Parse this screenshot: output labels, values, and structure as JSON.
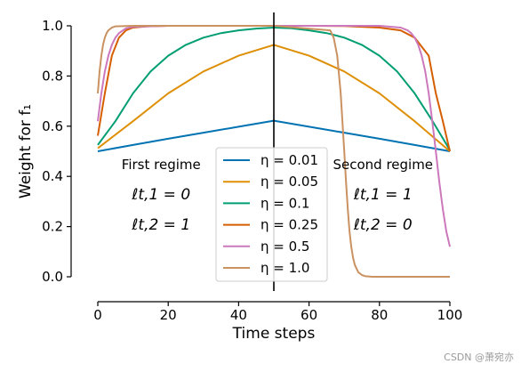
{
  "chart_data": {
    "type": "line",
    "xlabel": "Time steps",
    "ylabel": "Weight for f₁",
    "xlim": [
      0,
      100
    ],
    "ylim": [
      0.0,
      1.0
    ],
    "x_ticks": [
      0,
      20,
      40,
      60,
      80,
      100
    ],
    "y_ticks": [
      0.0,
      0.2,
      0.4,
      0.6,
      0.8,
      1.0
    ],
    "x_tick_labels": [
      "0",
      "20",
      "40",
      "60",
      "80",
      "100"
    ],
    "y_tick_labels": [
      "0.0",
      "0.2",
      "0.4",
      "0.6",
      "0.8",
      "1.0"
    ],
    "grid": false,
    "legend_placement": "lower-center",
    "vline_x": 50,
    "series": [
      {
        "name": "η = 0.01",
        "color": "#0173b2",
        "x": [
          0,
          10,
          20,
          30,
          40,
          50,
          60,
          70,
          80,
          90,
          100
        ],
        "y": [
          0.5,
          0.525,
          0.55,
          0.574,
          0.598,
          0.622,
          0.598,
          0.574,
          0.55,
          0.525,
          0.5
        ]
      },
      {
        "name": "η = 0.05",
        "color": "#de8f05",
        "x": [
          0,
          10,
          20,
          30,
          40,
          50,
          60,
          70,
          80,
          90,
          100
        ],
        "y": [
          0.512,
          0.62,
          0.731,
          0.818,
          0.881,
          0.924,
          0.881,
          0.818,
          0.731,
          0.62,
          0.5
        ]
      },
      {
        "name": "η = 0.1",
        "color": "#029e73",
        "x": [
          0,
          5,
          10,
          15,
          20,
          25,
          30,
          35,
          40,
          45,
          50,
          55,
          60,
          65,
          70,
          75,
          80,
          85,
          90,
          95,
          100
        ],
        "y": [
          0.525,
          0.62,
          0.731,
          0.818,
          0.881,
          0.924,
          0.953,
          0.971,
          0.982,
          0.989,
          0.993,
          0.99,
          0.982,
          0.971,
          0.953,
          0.924,
          0.881,
          0.818,
          0.731,
          0.622,
          0.505
        ]
      },
      {
        "name": "η = 0.25",
        "color": "#d55e00",
        "x": [
          0,
          2,
          4,
          6,
          8,
          10,
          14,
          20,
          30,
          40,
          50,
          60,
          70,
          80,
          86,
          90,
          94,
          96,
          98,
          100
        ],
        "y": [
          0.562,
          0.731,
          0.881,
          0.953,
          0.982,
          0.993,
          0.998,
          1.0,
          1.0,
          1.0,
          1.0,
          1.0,
          0.999,
          0.993,
          0.982,
          0.953,
          0.881,
          0.731,
          0.62,
          0.5
        ]
      },
      {
        "name": "η = 0.5",
        "color": "#cc78bc",
        "x": [
          0,
          1,
          2,
          3,
          4,
          5,
          6,
          8,
          10,
          20,
          50,
          80,
          86,
          88,
          89,
          90,
          91,
          92,
          93,
          94,
          95,
          96,
          97,
          98,
          99,
          100
        ],
        "y": [
          0.62,
          0.731,
          0.818,
          0.881,
          0.924,
          0.953,
          0.971,
          0.99,
          0.996,
          1.0,
          1.0,
          1.0,
          0.993,
          0.982,
          0.971,
          0.953,
          0.924,
          0.881,
          0.818,
          0.731,
          0.62,
          0.5,
          0.378,
          0.269,
          0.181,
          0.12
        ]
      },
      {
        "name": "η = 1.0",
        "color": "#ca9161",
        "x": [
          0,
          0.5,
          1,
          1.5,
          2,
          2.5,
          3,
          4,
          5,
          10,
          50,
          66,
          67,
          68,
          69,
          70,
          70.5,
          71,
          71.5,
          72,
          72.5,
          73,
          74,
          75,
          76,
          78,
          80,
          100
        ],
        "y": [
          0.731,
          0.818,
          0.881,
          0.924,
          0.953,
          0.971,
          0.982,
          0.993,
          0.998,
          1.0,
          1.0,
          0.982,
          0.953,
          0.881,
          0.731,
          0.5,
          0.378,
          0.269,
          0.182,
          0.119,
          0.076,
          0.047,
          0.018,
          0.007,
          0.002,
          0.0,
          0.0,
          0.0
        ]
      }
    ],
    "annotations": [
      {
        "name": "first-regime-title",
        "text": "First regime",
        "x": 18,
        "y": 0.45
      },
      {
        "name": "first-regime-l1",
        "text": "ℓt,1 = 0",
        "x": 18,
        "y": 0.33
      },
      {
        "name": "first-regime-l2",
        "text": "ℓt,2 = 1",
        "x": 18,
        "y": 0.21
      },
      {
        "name": "second-regime-title",
        "text": "Second regime",
        "x": 81,
        "y": 0.45
      },
      {
        "name": "second-regime-l1",
        "text": "ℓt,1 = 1",
        "x": 81,
        "y": 0.33
      },
      {
        "name": "second-regime-l2",
        "text": "ℓt,2 = 0",
        "x": 81,
        "y": 0.21
      }
    ]
  },
  "watermark": "CSDN @萧宛亦"
}
